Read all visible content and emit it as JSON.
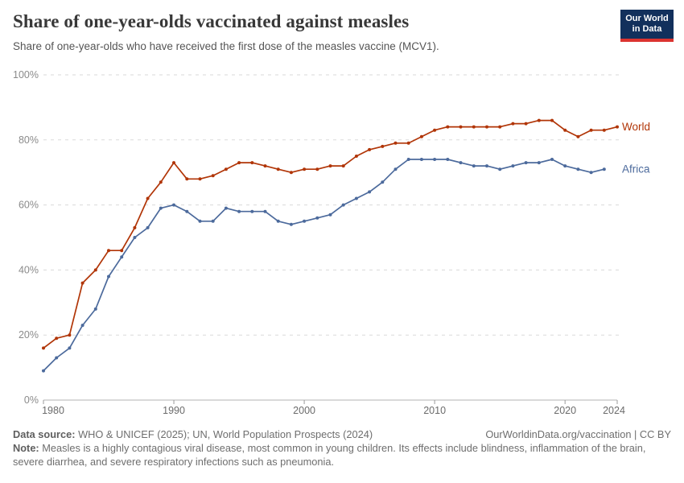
{
  "header": {
    "title": "Share of one-year-olds vaccinated against measles",
    "subtitle": "Share of one-year-olds who have received the first dose of the measles vaccine (MCV1).",
    "logo_line1": "Our World",
    "logo_line2": "in Data"
  },
  "colors": {
    "world": "#b13507",
    "africa": "#4c6a9c",
    "gridline": "#dadada",
    "axis": "#b3b3b3",
    "tick": "#9b9b9b",
    "logo_navy": "#12305c",
    "logo_red": "#dc3430"
  },
  "chart_data": {
    "type": "line",
    "title": "Share of one-year-olds vaccinated against measles",
    "xlabel": "",
    "ylabel": "",
    "xlim": [
      1980,
      2024
    ],
    "ylim": [
      0,
      100
    ],
    "x_ticks": [
      1980,
      1990,
      2000,
      2010,
      2020,
      2024
    ],
    "y_ticks": [
      0,
      20,
      40,
      60,
      80,
      100
    ],
    "y_tick_suffix": "%",
    "grid": true,
    "legend_position": "right-end-labels",
    "series": [
      {
        "name": "World",
        "color": "#b13507",
        "start_year": 1980,
        "values": [
          16,
          19,
          20,
          36,
          40,
          46,
          46,
          53,
          62,
          67,
          73,
          68,
          68,
          69,
          71,
          73,
          73,
          72,
          71,
          70,
          71,
          71,
          72,
          72,
          75,
          77,
          78,
          79,
          79,
          81,
          83,
          84,
          84,
          84,
          84,
          84,
          85,
          85,
          86,
          86,
          83,
          81,
          83,
          83,
          84
        ]
      },
      {
        "name": "Africa",
        "color": "#4c6a9c",
        "start_year": 1980,
        "values": [
          9,
          13,
          16,
          23,
          28,
          38,
          44,
          50,
          53,
          59,
          60,
          58,
          55,
          55,
          59,
          58,
          58,
          58,
          55,
          54,
          55,
          56,
          57,
          60,
          62,
          64,
          67,
          71,
          74,
          74,
          74,
          74,
          73,
          72,
          72,
          71,
          72,
          73,
          73,
          74,
          72,
          71,
          70,
          71
        ]
      }
    ]
  },
  "footer": {
    "datasource_label": "Data source:",
    "datasource_text": " WHO & UNICEF (2025); UN, World Population Prospects (2024)",
    "link_text": "OurWorldinData.org/vaccination",
    "license_text": " | CC BY",
    "note_label": "Note:",
    "note_text": " Measles is a highly contagious viral disease, most common in young children. Its effects include blindness, inflammation of the brain, severe diarrhea, and severe respiratory infections such as pneumonia."
  }
}
